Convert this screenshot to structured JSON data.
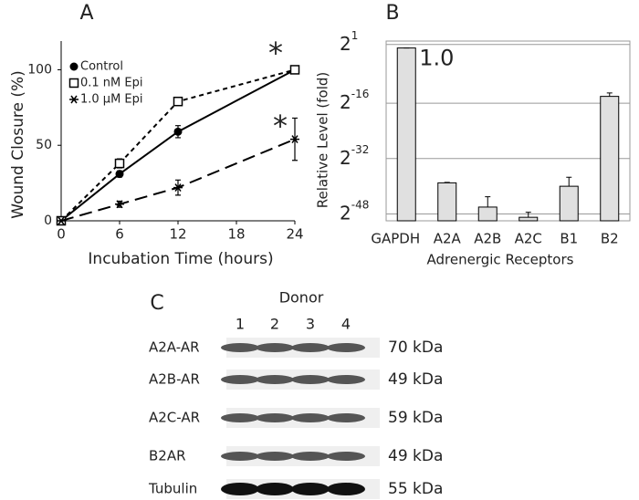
{
  "chart_data": [
    {
      "type": "line",
      "panel": "A",
      "x_label": "Incubation Time (hours)",
      "y_label": "Wound Closure (%)",
      "x": [
        0,
        6,
        12,
        24
      ],
      "xlim": [
        0,
        24
      ],
      "xticks": [
        0,
        6,
        12,
        18,
        24
      ],
      "ylim": [
        0,
        119
      ],
      "yticks": [
        0,
        50,
        100
      ],
      "series": [
        {
          "name": "Control",
          "color": "#000000",
          "dash": "none",
          "marker": "circle",
          "values": [
            0,
            31,
            59,
            100
          ],
          "errors": [
            0,
            2,
            4,
            2
          ]
        },
        {
          "name": "0.1 nM Epi",
          "color": "#000000",
          "dash": "5 4",
          "marker": "square",
          "values": [
            0,
            38,
            79,
            100
          ],
          "errors": [
            0,
            3,
            2,
            2
          ]
        },
        {
          "name": "1.0 µM Epi",
          "color": "#000000",
          "dash": "14 7",
          "marker": "star",
          "values": [
            0,
            11,
            22,
            54
          ],
          "errors": [
            0,
            2,
            5,
            14
          ]
        }
      ],
      "annotations": [
        "*",
        "*"
      ]
    },
    {
      "type": "bar",
      "panel": "B",
      "x_label": "Adrenergic Receptors",
      "y_label": "Relative Level (fold)",
      "log_base": 2,
      "categories": [
        "GAPDH",
        "A2A",
        "A2B",
        "A2C",
        "B1",
        "B2"
      ],
      "values": [
        1.0,
        1.8e-12,
        1.4e-14,
        1.8e-15,
        9.1e-13,
        6.1e-05
      ],
      "value_labels": [
        "1.0",
        null,
        null,
        null,
        null,
        null
      ],
      "error_tops": [
        1.0,
        2e-12,
        1.1e-13,
        5e-15,
        5.5e-12,
        0.00012
      ],
      "color": "#e0e0e0",
      "ylim": [
        8.9e-16,
        4
      ],
      "yticks": [
        {
          "value": 2,
          "label": "2",
          "exponent": "1"
        },
        {
          "value": 1.53e-05,
          "label": "2",
          "exponent": "-16"
        },
        {
          "value": 2.33e-10,
          "label": "2",
          "exponent": "-32"
        },
        {
          "value": 3.55e-15,
          "label": "2",
          "exponent": "-48"
        }
      ],
      "grid": true
    }
  ],
  "blot": {
    "panel": "C",
    "title": "Donor",
    "lanes": [
      "1",
      "2",
      "3",
      "4"
    ],
    "rows": [
      {
        "name": "A2A-AR",
        "size": "70 kDa"
      },
      {
        "name": "A2B-AR",
        "size": "49 kDa"
      },
      {
        "name": "A2C-AR",
        "size": "59 kDa"
      },
      {
        "name": "B2AR",
        "size": "49 kDa"
      },
      {
        "name": "Tubulin",
        "size": "55 kDa"
      }
    ]
  }
}
